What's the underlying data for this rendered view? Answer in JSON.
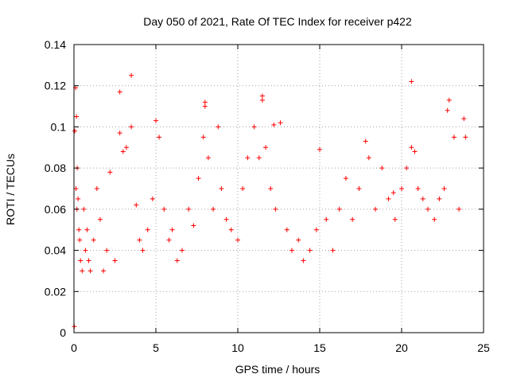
{
  "chart_data": {
    "type": "scatter",
    "title": "Day 050 of 2021, Rate Of TEC Index for receiver p422",
    "xlabel": "GPS time / hours",
    "ylabel": "ROTI / TECUs",
    "xlim": [
      0,
      25
    ],
    "ylim": [
      0,
      0.14
    ],
    "x_ticks": [
      0,
      5,
      10,
      15,
      20,
      25
    ],
    "x_tick_labels": [
      "0",
      "5",
      "10",
      "15",
      "20",
      "25"
    ],
    "y_ticks": [
      0,
      0.02,
      0.04,
      0.06,
      0.08,
      0.1,
      0.12,
      0.14
    ],
    "y_tick_labels": [
      "0",
      "0.02",
      "0.04",
      "0.06",
      "0.08",
      "0.1",
      "0.12",
      "0.14"
    ],
    "grid": true,
    "marker": "+",
    "color": "#ff0000",
    "series": [
      {
        "name": "ROTI",
        "x": [
          0.05,
          0.1,
          0.15,
          0.2,
          0.25,
          0.3,
          0.12,
          0.18,
          0.35,
          0.4,
          0.5,
          0.6,
          0.7,
          0.8,
          0.9,
          1.0,
          1.2,
          1.4,
          1.6,
          1.8,
          2.0,
          2.2,
          2.5,
          2.8,
          3.0,
          3.2,
          3.5,
          3.8,
          4.0,
          4.2,
          4.5,
          4.8,
          5.0,
          5.2,
          5.5,
          5.8,
          6.0,
          6.3,
          6.6,
          7.0,
          7.3,
          7.6,
          7.9,
          8.0,
          8.2,
          8.5,
          8.8,
          9.0,
          9.3,
          9.6,
          10.0,
          10.3,
          10.6,
          11.0,
          11.3,
          11.5,
          11.7,
          12.0,
          12.3,
          12.6,
          13.0,
          13.3,
          13.7,
          14.0,
          14.4,
          14.8,
          15.0,
          15.4,
          15.8,
          16.2,
          16.6,
          17.0,
          17.4,
          17.8,
          18.0,
          18.4,
          18.8,
          19.2,
          19.6,
          20.0,
          20.3,
          20.6,
          20.8,
          21.0,
          21.3,
          21.6,
          22.0,
          22.3,
          22.6,
          22.9,
          23.2,
          23.5,
          23.8,
          23.9,
          0.02,
          2.8,
          3.5,
          20.6,
          8.0,
          11.5,
          22.8,
          12.2,
          19.5
        ],
        "y": [
          0.098,
          0.119,
          0.105,
          0.08,
          0.065,
          0.05,
          0.07,
          0.06,
          0.045,
          0.035,
          0.03,
          0.06,
          0.04,
          0.05,
          0.035,
          0.03,
          0.045,
          0.07,
          0.055,
          0.03,
          0.04,
          0.078,
          0.035,
          0.097,
          0.088,
          0.09,
          0.1,
          0.062,
          0.045,
          0.04,
          0.05,
          0.065,
          0.103,
          0.095,
          0.06,
          0.045,
          0.05,
          0.035,
          0.04,
          0.06,
          0.052,
          0.075,
          0.095,
          0.112,
          0.085,
          0.06,
          0.1,
          0.07,
          0.055,
          0.05,
          0.045,
          0.07,
          0.085,
          0.1,
          0.085,
          0.115,
          0.09,
          0.07,
          0.06,
          0.102,
          0.05,
          0.04,
          0.045,
          0.035,
          0.04,
          0.05,
          0.089,
          0.055,
          0.04,
          0.06,
          0.075,
          0.055,
          0.07,
          0.093,
          0.085,
          0.06,
          0.08,
          0.065,
          0.055,
          0.07,
          0.08,
          0.09,
          0.088,
          0.07,
          0.065,
          0.06,
          0.055,
          0.065,
          0.07,
          0.113,
          0.095,
          0.06,
          0.104,
          0.095,
          0.003,
          0.117,
          0.125,
          0.122,
          0.11,
          0.113,
          0.108,
          0.101,
          0.068
        ]
      }
    ]
  }
}
